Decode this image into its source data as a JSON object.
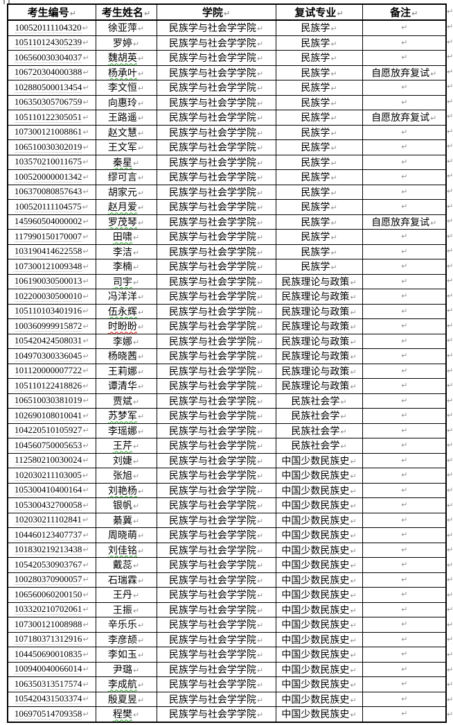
{
  "colors": {
    "background": "#ffffff",
    "grid_border": "#000000",
    "text": "#000000",
    "formatting_mark": "#8f8f8f",
    "id_dotted_underline": "#b0b0b0",
    "spellcheck_green": "#1ea31e",
    "spellcheck_red": "#e00000"
  },
  "marks": {
    "cell_end": "↵",
    "row_end": "↵"
  },
  "table": {
    "headers": [
      "考生编号",
      "考生姓名",
      "学院",
      "复试专业",
      "备注"
    ],
    "rows": [
      {
        "id": "100520111104320",
        "name": "徐亚萍",
        "college": "民族学与社会学学院",
        "major": "民族学",
        "note": "",
        "name_mark": ""
      },
      {
        "id": "105110124305239",
        "name": "罗婷",
        "college": "民族学与社会学学院",
        "major": "民族学",
        "note": "",
        "name_mark": ""
      },
      {
        "id": "106560030304037",
        "name": "魏胡英",
        "college": "民族学与社会学学院",
        "major": "民族学",
        "note": "",
        "name_mark": "green"
      },
      {
        "id": "106720304000388",
        "name": "杨承叶",
        "college": "民族学与社会学学院",
        "major": "民族学",
        "note": "自愿放弃复试",
        "name_mark": "green"
      },
      {
        "id": "102880500013454",
        "name": "李文恒",
        "college": "民族学与社会学学院",
        "major": "民族学",
        "note": "",
        "name_mark": ""
      },
      {
        "id": "106350305706759",
        "name": "向惠玲",
        "college": "民族学与社会学学院",
        "major": "民族学",
        "note": "",
        "name_mark": ""
      },
      {
        "id": "105110122305051",
        "name": "王路遥",
        "college": "民族学与社会学学院",
        "major": "民族学",
        "note": "自愿放弃复试",
        "name_mark": ""
      },
      {
        "id": "107300121008861",
        "name": "赵文慧",
        "college": "民族学与社会学学院",
        "major": "民族学",
        "note": "",
        "name_mark": ""
      },
      {
        "id": "106510030302019",
        "name": "王文军",
        "college": "民族学与社会学学院",
        "major": "民族学",
        "note": "",
        "name_mark": ""
      },
      {
        "id": "103570210011675",
        "name": "秦星",
        "college": "民族学与社会学学院",
        "major": "民族学",
        "note": "",
        "name_mark": "green"
      },
      {
        "id": "100520000001342",
        "name": "缪可言",
        "college": "民族学与社会学学院",
        "major": "民族学",
        "note": "",
        "name_mark": ""
      },
      {
        "id": "106370080857643",
        "name": "胡家元",
        "college": "民族学与社会学学院",
        "major": "民族学",
        "note": "",
        "name_mark": ""
      },
      {
        "id": "100520111104575",
        "name": "赵月爱",
        "college": "民族学与社会学学院",
        "major": "民族学",
        "note": "",
        "name_mark": "green"
      },
      {
        "id": "145960504000002",
        "name": "罗茂琴",
        "college": "民族学与社会学学院",
        "major": "民族学",
        "note": "自愿放弃复试",
        "name_mark": "green"
      },
      {
        "id": "117990150170007",
        "name": "田啸",
        "college": "民族学与社会学学院",
        "major": "民族学",
        "note": "",
        "name_mark": "green"
      },
      {
        "id": "103190414622558",
        "name": "李洁",
        "college": "民族学与社会学学院",
        "major": "民族学",
        "note": "",
        "name_mark": ""
      },
      {
        "id": "107300121009348",
        "name": "李楠",
        "college": "民族学与社会学学院",
        "major": "民族学",
        "note": "",
        "name_mark": ""
      },
      {
        "id": "106190030500013",
        "name": "司宇",
        "college": "民族学与社会学学院",
        "major": "民族理论与政策",
        "note": "",
        "name_mark": "green"
      },
      {
        "id": "102200030500010",
        "name": "冯洋洋",
        "college": "民族学与社会学学院",
        "major": "民族理论与政策",
        "note": "",
        "name_mark": ""
      },
      {
        "id": "105110103401916",
        "name": "伍永辉",
        "college": "民族学与社会学学院",
        "major": "民族理论与政策",
        "note": "",
        "name_mark": "green"
      },
      {
        "id": "100360999915872",
        "name": "时盼盼",
        "college": "民族学与社会学学院",
        "major": "民族理论与政策",
        "note": "",
        "name_mark": "red"
      },
      {
        "id": "105420424508031",
        "name": "李娜",
        "college": "民族学与社会学学院",
        "major": "民族理论与政策",
        "note": "",
        "name_mark": ""
      },
      {
        "id": "104970300336045",
        "name": "杨晓茜",
        "college": "民族学与社会学学院",
        "major": "民族理论与政策",
        "note": "",
        "name_mark": ""
      },
      {
        "id": "101120000007722",
        "name": "王莉娜",
        "college": "民族学与社会学学院",
        "major": "民族理论与政策",
        "note": "",
        "name_mark": ""
      },
      {
        "id": "105110122418826",
        "name": "谭清华",
        "college": "民族学与社会学学院",
        "major": "民族理论与政策",
        "note": "",
        "name_mark": ""
      },
      {
        "id": "106510030381019",
        "name": "贾斌",
        "college": "民族学与社会学学院",
        "major": "民族社会学",
        "note": "",
        "name_mark": ""
      },
      {
        "id": "102690108010041",
        "name": "苏梦军",
        "college": "民族学与社会学学院",
        "major": "民族社会学",
        "note": "",
        "name_mark": "green"
      },
      {
        "id": "104220510105927",
        "name": "李瑶娜",
        "college": "民族学与社会学学院",
        "major": "民族社会学",
        "note": "",
        "name_mark": ""
      },
      {
        "id": "104560750005653",
        "name": "王芹",
        "college": "民族学与社会学学院",
        "major": "民族社会学",
        "note": "",
        "name_mark": "green"
      },
      {
        "id": "112580210030024",
        "name": "刘婕",
        "college": "民族学与社会学学院",
        "major": "中国少数民族史",
        "note": "",
        "name_mark": ""
      },
      {
        "id": "102030211103005",
        "name": "张旭",
        "college": "民族学与社会学学院",
        "major": "中国少数民族史",
        "note": "",
        "name_mark": ""
      },
      {
        "id": "105300410400164",
        "name": "刘艳杨",
        "college": "民族学与社会学学院",
        "major": "中国少数民族史",
        "note": "",
        "name_mark": "green"
      },
      {
        "id": "105300432700058",
        "name": "银帆",
        "college": "民族学与社会学学院",
        "major": "中国少数民族史",
        "note": "",
        "name_mark": ""
      },
      {
        "id": "102030211102841",
        "name": "綦冀",
        "college": "民族学与社会学学院",
        "major": "中国少数民族史",
        "note": "",
        "name_mark": ""
      },
      {
        "id": "104460123407737",
        "name": "周晓萌",
        "college": "民族学与社会学学院",
        "major": "中国少数民族史",
        "note": "",
        "name_mark": ""
      },
      {
        "id": "101830219213438",
        "name": "刘佳铭",
        "college": "民族学与社会学学院",
        "major": "中国少数民族史",
        "note": "",
        "name_mark": "green"
      },
      {
        "id": "105420530903767",
        "name": "戴蕊",
        "college": "民族学与社会学学院",
        "major": "中国少数民族史",
        "note": "",
        "name_mark": ""
      },
      {
        "id": "100280370900057",
        "name": "石瑞霖",
        "college": "民族学与社会学学院",
        "major": "中国少数民族史",
        "note": "",
        "name_mark": ""
      },
      {
        "id": "106560060200150",
        "name": "王丹",
        "college": "民族学与社会学学院",
        "major": "中国少数民族史",
        "note": "",
        "name_mark": ""
      },
      {
        "id": "103320210702061",
        "name": "王振",
        "college": "民族学与社会学学院",
        "major": "中国少数民族史",
        "note": "",
        "name_mark": ""
      },
      {
        "id": "107300121008988",
        "name": "辛乐乐",
        "college": "民族学与社会学学院",
        "major": "中国少数民族史",
        "note": "",
        "name_mark": ""
      },
      {
        "id": "107180371312916",
        "name": "李彦颉",
        "college": "民族学与社会学学院",
        "major": "中国少数民族史",
        "note": "",
        "name_mark": ""
      },
      {
        "id": "104450690010835",
        "name": "李如玉",
        "college": "民族学与社会学学院",
        "major": "中国少数民族史",
        "note": "",
        "name_mark": ""
      },
      {
        "id": "100940040066014",
        "name": "尹璐",
        "college": "民族学与社会学学院",
        "major": "中国少数民族史",
        "note": "",
        "name_mark": ""
      },
      {
        "id": "106350313517574",
        "name": "李成航",
        "college": "民族学与社会学学院",
        "major": "中国少数民族史",
        "note": "",
        "name_mark": "green"
      },
      {
        "id": "105420431503374",
        "name": "殷夏昱",
        "college": "民族学与社会学学院",
        "major": "中国少数民族史",
        "note": "",
        "name_mark": ""
      },
      {
        "id": "106970514709358",
        "name": "程樊",
        "college": "民族学与社会学学院",
        "major": "中国少数民族史",
        "note": "",
        "name_mark": "green"
      }
    ]
  }
}
